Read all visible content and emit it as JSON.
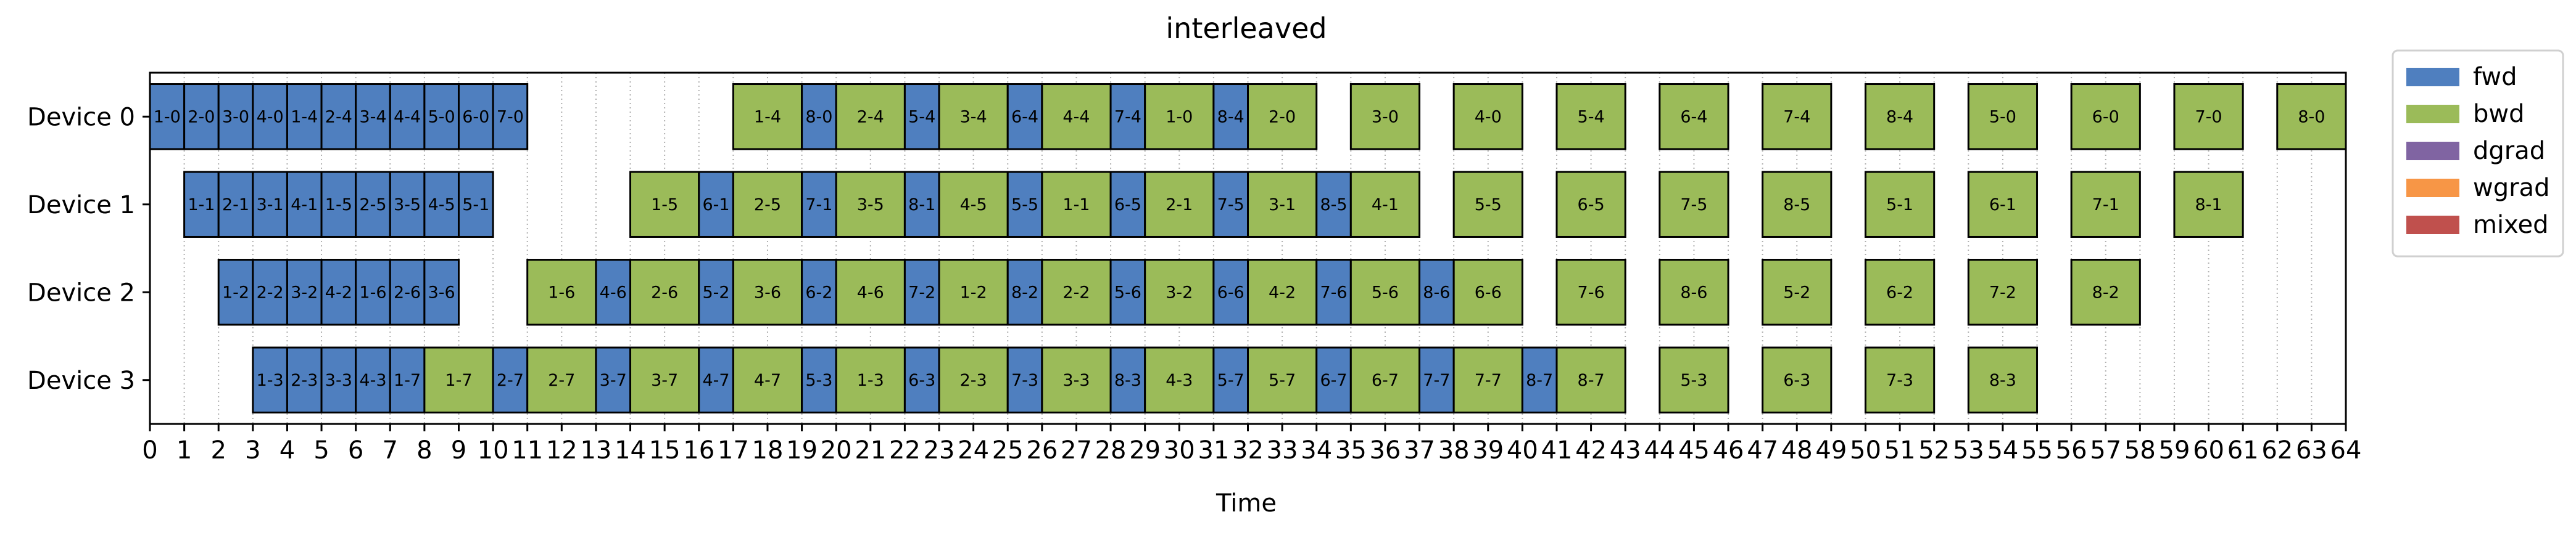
{
  "chart_data": {
    "type": "gantt",
    "title": "interleaved",
    "xlabel": "Time",
    "ylabel": "",
    "xlim": [
      0,
      64
    ],
    "x_ticks": [
      0,
      1,
      2,
      3,
      4,
      5,
      6,
      7,
      8,
      9,
      10,
      11,
      12,
      13,
      14,
      15,
      16,
      17,
      18,
      19,
      20,
      21,
      22,
      23,
      24,
      25,
      26,
      27,
      28,
      29,
      30,
      31,
      32,
      33,
      34,
      35,
      36,
      37,
      38,
      39,
      40,
      41,
      42,
      43,
      44,
      45,
      46,
      47,
      48,
      49,
      50,
      51,
      52,
      53,
      54,
      55,
      56,
      57,
      58,
      59,
      60,
      61,
      62,
      63,
      64
    ],
    "vertical_grid": "dotted",
    "devices": [
      "Device 0",
      "Device 1",
      "Device 2",
      "Device 3"
    ],
    "legend": {
      "placement": "outside-right-top",
      "entries": [
        {
          "label": "fwd",
          "color": "#4f7fbf"
        },
        {
          "label": "bwd",
          "color": "#9bbb59"
        },
        {
          "label": "dgrad",
          "color": "#8064a2"
        },
        {
          "label": "wgrad",
          "color": "#f79646"
        },
        {
          "label": "mixed",
          "color": "#c0504d"
        }
      ]
    },
    "tasks": [
      {
        "device": 0,
        "start": 0,
        "end": 1,
        "kind": "fwd",
        "label": "1-0"
      },
      {
        "device": 0,
        "start": 1,
        "end": 2,
        "kind": "fwd",
        "label": "2-0"
      },
      {
        "device": 0,
        "start": 2,
        "end": 3,
        "kind": "fwd",
        "label": "3-0"
      },
      {
        "device": 0,
        "start": 3,
        "end": 4,
        "kind": "fwd",
        "label": "4-0"
      },
      {
        "device": 0,
        "start": 4,
        "end": 5,
        "kind": "fwd",
        "label": "1-4"
      },
      {
        "device": 0,
        "start": 5,
        "end": 6,
        "kind": "fwd",
        "label": "2-4"
      },
      {
        "device": 0,
        "start": 6,
        "end": 7,
        "kind": "fwd",
        "label": "3-4"
      },
      {
        "device": 0,
        "start": 7,
        "end": 8,
        "kind": "fwd",
        "label": "4-4"
      },
      {
        "device": 0,
        "start": 8,
        "end": 9,
        "kind": "fwd",
        "label": "5-0"
      },
      {
        "device": 0,
        "start": 9,
        "end": 10,
        "kind": "fwd",
        "label": "6-0"
      },
      {
        "device": 0,
        "start": 10,
        "end": 11,
        "kind": "fwd",
        "label": "7-0"
      },
      {
        "device": 0,
        "start": 17,
        "end": 19,
        "kind": "bwd",
        "label": "1-4"
      },
      {
        "device": 0,
        "start": 19,
        "end": 20,
        "kind": "fwd",
        "label": "8-0"
      },
      {
        "device": 0,
        "start": 20,
        "end": 22,
        "kind": "bwd",
        "label": "2-4"
      },
      {
        "device": 0,
        "start": 22,
        "end": 23,
        "kind": "fwd",
        "label": "5-4"
      },
      {
        "device": 0,
        "start": 23,
        "end": 25,
        "kind": "bwd",
        "label": "3-4"
      },
      {
        "device": 0,
        "start": 25,
        "end": 26,
        "kind": "fwd",
        "label": "6-4"
      },
      {
        "device": 0,
        "start": 26,
        "end": 28,
        "kind": "bwd",
        "label": "4-4"
      },
      {
        "device": 0,
        "start": 28,
        "end": 29,
        "kind": "fwd",
        "label": "7-4"
      },
      {
        "device": 0,
        "start": 29,
        "end": 31,
        "kind": "bwd",
        "label": "1-0"
      },
      {
        "device": 0,
        "start": 31,
        "end": 32,
        "kind": "fwd",
        "label": "8-4"
      },
      {
        "device": 0,
        "start": 32,
        "end": 34,
        "kind": "bwd",
        "label": "2-0"
      },
      {
        "device": 0,
        "start": 35,
        "end": 37,
        "kind": "bwd",
        "label": "3-0"
      },
      {
        "device": 0,
        "start": 38,
        "end": 40,
        "kind": "bwd",
        "label": "4-0"
      },
      {
        "device": 0,
        "start": 41,
        "end": 43,
        "kind": "bwd",
        "label": "5-4"
      },
      {
        "device": 0,
        "start": 44,
        "end": 46,
        "kind": "bwd",
        "label": "6-4"
      },
      {
        "device": 0,
        "start": 47,
        "end": 49,
        "kind": "bwd",
        "label": "7-4"
      },
      {
        "device": 0,
        "start": 50,
        "end": 52,
        "kind": "bwd",
        "label": "8-4"
      },
      {
        "device": 0,
        "start": 53,
        "end": 55,
        "kind": "bwd",
        "label": "5-0"
      },
      {
        "device": 0,
        "start": 56,
        "end": 58,
        "kind": "bwd",
        "label": "6-0"
      },
      {
        "device": 0,
        "start": 59,
        "end": 61,
        "kind": "bwd",
        "label": "7-0"
      },
      {
        "device": 0,
        "start": 62,
        "end": 64,
        "kind": "bwd",
        "label": "8-0"
      },
      {
        "device": 1,
        "start": 1,
        "end": 2,
        "kind": "fwd",
        "label": "1-1"
      },
      {
        "device": 1,
        "start": 2,
        "end": 3,
        "kind": "fwd",
        "label": "2-1"
      },
      {
        "device": 1,
        "start": 3,
        "end": 4,
        "kind": "fwd",
        "label": "3-1"
      },
      {
        "device": 1,
        "start": 4,
        "end": 5,
        "kind": "fwd",
        "label": "4-1"
      },
      {
        "device": 1,
        "start": 5,
        "end": 6,
        "kind": "fwd",
        "label": "1-5"
      },
      {
        "device": 1,
        "start": 6,
        "end": 7,
        "kind": "fwd",
        "label": "2-5"
      },
      {
        "device": 1,
        "start": 7,
        "end": 8,
        "kind": "fwd",
        "label": "3-5"
      },
      {
        "device": 1,
        "start": 8,
        "end": 9,
        "kind": "fwd",
        "label": "4-5"
      },
      {
        "device": 1,
        "start": 9,
        "end": 10,
        "kind": "fwd",
        "label": "5-1"
      },
      {
        "device": 1,
        "start": 14,
        "end": 16,
        "kind": "bwd",
        "label": "1-5"
      },
      {
        "device": 1,
        "start": 16,
        "end": 17,
        "kind": "fwd",
        "label": "6-1"
      },
      {
        "device": 1,
        "start": 17,
        "end": 19,
        "kind": "bwd",
        "label": "2-5"
      },
      {
        "device": 1,
        "start": 19,
        "end": 20,
        "kind": "fwd",
        "label": "7-1"
      },
      {
        "device": 1,
        "start": 20,
        "end": 22,
        "kind": "bwd",
        "label": "3-5"
      },
      {
        "device": 1,
        "start": 22,
        "end": 23,
        "kind": "fwd",
        "label": "8-1"
      },
      {
        "device": 1,
        "start": 23,
        "end": 25,
        "kind": "bwd",
        "label": "4-5"
      },
      {
        "device": 1,
        "start": 25,
        "end": 26,
        "kind": "fwd",
        "label": "5-5"
      },
      {
        "device": 1,
        "start": 26,
        "end": 28,
        "kind": "bwd",
        "label": "1-1"
      },
      {
        "device": 1,
        "start": 28,
        "end": 29,
        "kind": "fwd",
        "label": "6-5"
      },
      {
        "device": 1,
        "start": 29,
        "end": 31,
        "kind": "bwd",
        "label": "2-1"
      },
      {
        "device": 1,
        "start": 31,
        "end": 32,
        "kind": "fwd",
        "label": "7-5"
      },
      {
        "device": 1,
        "start": 32,
        "end": 34,
        "kind": "bwd",
        "label": "3-1"
      },
      {
        "device": 1,
        "start": 34,
        "end": 35,
        "kind": "fwd",
        "label": "8-5"
      },
      {
        "device": 1,
        "start": 35,
        "end": 37,
        "kind": "bwd",
        "label": "4-1"
      },
      {
        "device": 1,
        "start": 38,
        "end": 40,
        "kind": "bwd",
        "label": "5-5"
      },
      {
        "device": 1,
        "start": 41,
        "end": 43,
        "kind": "bwd",
        "label": "6-5"
      },
      {
        "device": 1,
        "start": 44,
        "end": 46,
        "kind": "bwd",
        "label": "7-5"
      },
      {
        "device": 1,
        "start": 47,
        "end": 49,
        "kind": "bwd",
        "label": "8-5"
      },
      {
        "device": 1,
        "start": 50,
        "end": 52,
        "kind": "bwd",
        "label": "5-1"
      },
      {
        "device": 1,
        "start": 53,
        "end": 55,
        "kind": "bwd",
        "label": "6-1"
      },
      {
        "device": 1,
        "start": 56,
        "end": 58,
        "kind": "bwd",
        "label": "7-1"
      },
      {
        "device": 1,
        "start": 59,
        "end": 61,
        "kind": "bwd",
        "label": "8-1"
      },
      {
        "device": 2,
        "start": 2,
        "end": 3,
        "kind": "fwd",
        "label": "1-2"
      },
      {
        "device": 2,
        "start": 3,
        "end": 4,
        "kind": "fwd",
        "label": "2-2"
      },
      {
        "device": 2,
        "start": 4,
        "end": 5,
        "kind": "fwd",
        "label": "3-2"
      },
      {
        "device": 2,
        "start": 5,
        "end": 6,
        "kind": "fwd",
        "label": "4-2"
      },
      {
        "device": 2,
        "start": 6,
        "end": 7,
        "kind": "fwd",
        "label": "1-6"
      },
      {
        "device": 2,
        "start": 7,
        "end": 8,
        "kind": "fwd",
        "label": "2-6"
      },
      {
        "device": 2,
        "start": 8,
        "end": 9,
        "kind": "fwd",
        "label": "3-6"
      },
      {
        "device": 2,
        "start": 11,
        "end": 13,
        "kind": "bwd",
        "label": "1-6"
      },
      {
        "device": 2,
        "start": 13,
        "end": 14,
        "kind": "fwd",
        "label": "4-6"
      },
      {
        "device": 2,
        "start": 14,
        "end": 16,
        "kind": "bwd",
        "label": "2-6"
      },
      {
        "device": 2,
        "start": 16,
        "end": 17,
        "kind": "fwd",
        "label": "5-2"
      },
      {
        "device": 2,
        "start": 17,
        "end": 19,
        "kind": "bwd",
        "label": "3-6"
      },
      {
        "device": 2,
        "start": 19,
        "end": 20,
        "kind": "fwd",
        "label": "6-2"
      },
      {
        "device": 2,
        "start": 20,
        "end": 22,
        "kind": "bwd",
        "label": "4-6"
      },
      {
        "device": 2,
        "start": 22,
        "end": 23,
        "kind": "fwd",
        "label": "7-2"
      },
      {
        "device": 2,
        "start": 23,
        "end": 25,
        "kind": "bwd",
        "label": "1-2"
      },
      {
        "device": 2,
        "start": 25,
        "end": 26,
        "kind": "fwd",
        "label": "8-2"
      },
      {
        "device": 2,
        "start": 26,
        "end": 28,
        "kind": "bwd",
        "label": "2-2"
      },
      {
        "device": 2,
        "start": 28,
        "end": 29,
        "kind": "fwd",
        "label": "5-6"
      },
      {
        "device": 2,
        "start": 29,
        "end": 31,
        "kind": "bwd",
        "label": "3-2"
      },
      {
        "device": 2,
        "start": 31,
        "end": 32,
        "kind": "fwd",
        "label": "6-6"
      },
      {
        "device": 2,
        "start": 32,
        "end": 34,
        "kind": "bwd",
        "label": "4-2"
      },
      {
        "device": 2,
        "start": 34,
        "end": 35,
        "kind": "fwd",
        "label": "7-6"
      },
      {
        "device": 2,
        "start": 35,
        "end": 37,
        "kind": "bwd",
        "label": "5-6"
      },
      {
        "device": 2,
        "start": 37,
        "end": 38,
        "kind": "fwd",
        "label": "8-6"
      },
      {
        "device": 2,
        "start": 38,
        "end": 40,
        "kind": "bwd",
        "label": "6-6"
      },
      {
        "device": 2,
        "start": 41,
        "end": 43,
        "kind": "bwd",
        "label": "7-6"
      },
      {
        "device": 2,
        "start": 44,
        "end": 46,
        "kind": "bwd",
        "label": "8-6"
      },
      {
        "device": 2,
        "start": 47,
        "end": 49,
        "kind": "bwd",
        "label": "5-2"
      },
      {
        "device": 2,
        "start": 50,
        "end": 52,
        "kind": "bwd",
        "label": "6-2"
      },
      {
        "device": 2,
        "start": 53,
        "end": 55,
        "kind": "bwd",
        "label": "7-2"
      },
      {
        "device": 2,
        "start": 56,
        "end": 58,
        "kind": "bwd",
        "label": "8-2"
      },
      {
        "device": 3,
        "start": 3,
        "end": 4,
        "kind": "fwd",
        "label": "1-3"
      },
      {
        "device": 3,
        "start": 4,
        "end": 5,
        "kind": "fwd",
        "label": "2-3"
      },
      {
        "device": 3,
        "start": 5,
        "end": 6,
        "kind": "fwd",
        "label": "3-3"
      },
      {
        "device": 3,
        "start": 6,
        "end": 7,
        "kind": "fwd",
        "label": "4-3"
      },
      {
        "device": 3,
        "start": 7,
        "end": 8,
        "kind": "fwd",
        "label": "1-7"
      },
      {
        "device": 3,
        "start": 8,
        "end": 10,
        "kind": "bwd",
        "label": "1-7"
      },
      {
        "device": 3,
        "start": 10,
        "end": 11,
        "kind": "fwd",
        "label": "2-7"
      },
      {
        "device": 3,
        "start": 11,
        "end": 13,
        "kind": "bwd",
        "label": "2-7"
      },
      {
        "device": 3,
        "start": 13,
        "end": 14,
        "kind": "fwd",
        "label": "3-7"
      },
      {
        "device": 3,
        "start": 14,
        "end": 16,
        "kind": "bwd",
        "label": "3-7"
      },
      {
        "device": 3,
        "start": 16,
        "end": 17,
        "kind": "fwd",
        "label": "4-7"
      },
      {
        "device": 3,
        "start": 17,
        "end": 19,
        "kind": "bwd",
        "label": "4-7"
      },
      {
        "device": 3,
        "start": 19,
        "end": 20,
        "kind": "fwd",
        "label": "5-3"
      },
      {
        "device": 3,
        "start": 20,
        "end": 22,
        "kind": "bwd",
        "label": "1-3"
      },
      {
        "device": 3,
        "start": 22,
        "end": 23,
        "kind": "fwd",
        "label": "6-3"
      },
      {
        "device": 3,
        "start": 23,
        "end": 25,
        "kind": "bwd",
        "label": "2-3"
      },
      {
        "device": 3,
        "start": 25,
        "end": 26,
        "kind": "fwd",
        "label": "7-3"
      },
      {
        "device": 3,
        "start": 26,
        "end": 28,
        "kind": "bwd",
        "label": "3-3"
      },
      {
        "device": 3,
        "start": 28,
        "end": 29,
        "kind": "fwd",
        "label": "8-3"
      },
      {
        "device": 3,
        "start": 29,
        "end": 31,
        "kind": "bwd",
        "label": "4-3"
      },
      {
        "device": 3,
        "start": 31,
        "end": 32,
        "kind": "fwd",
        "label": "5-7"
      },
      {
        "device": 3,
        "start": 32,
        "end": 34,
        "kind": "bwd",
        "label": "5-7"
      },
      {
        "device": 3,
        "start": 34,
        "end": 35,
        "kind": "fwd",
        "label": "6-7"
      },
      {
        "device": 3,
        "start": 35,
        "end": 37,
        "kind": "bwd",
        "label": "6-7"
      },
      {
        "device": 3,
        "start": 37,
        "end": 38,
        "kind": "fwd",
        "label": "7-7"
      },
      {
        "device": 3,
        "start": 38,
        "end": 40,
        "kind": "bwd",
        "label": "7-7"
      },
      {
        "device": 3,
        "start": 40,
        "end": 41,
        "kind": "fwd",
        "label": "8-7"
      },
      {
        "device": 3,
        "start": 41,
        "end": 43,
        "kind": "bwd",
        "label": "8-7"
      },
      {
        "device": 3,
        "start": 44,
        "end": 46,
        "kind": "bwd",
        "label": "5-3"
      },
      {
        "device": 3,
        "start": 47,
        "end": 49,
        "kind": "bwd",
        "label": "6-3"
      },
      {
        "device": 3,
        "start": 50,
        "end": 52,
        "kind": "bwd",
        "label": "7-3"
      },
      {
        "device": 3,
        "start": 53,
        "end": 55,
        "kind": "bwd",
        "label": "8-3"
      }
    ]
  }
}
